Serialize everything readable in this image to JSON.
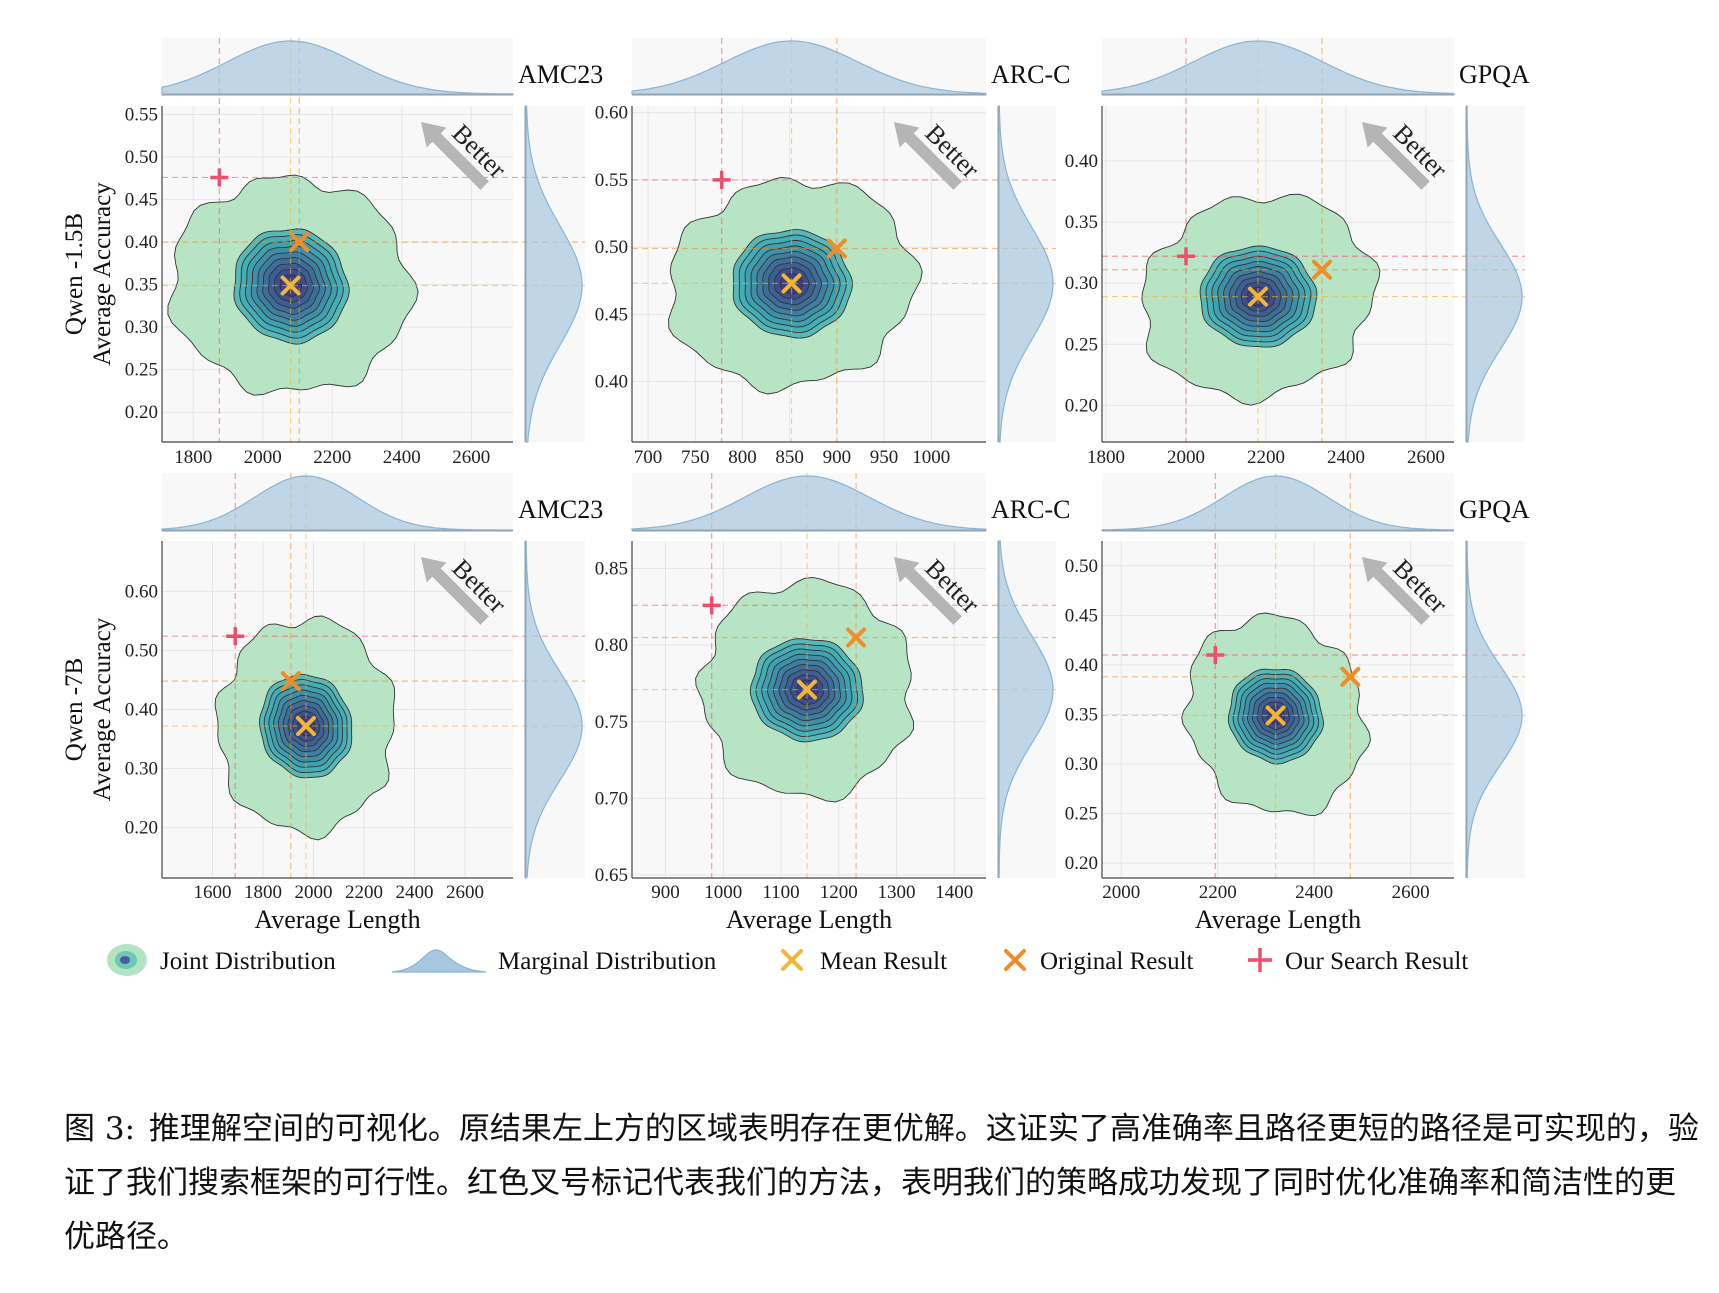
{
  "chart_data": [
    {
      "type": "contour-kde-joint",
      "row_label": "Qwen -1.5B",
      "dataset": "AMC23",
      "ylabel": "Average Accuracy",
      "xlabel": "",
      "xlim": [
        1710,
        2720
      ],
      "ylim": [
        0.165,
        0.56
      ],
      "xticks": [
        1800,
        2000,
        2200,
        2400,
        2600
      ],
      "yticks": [
        0.2,
        0.25,
        0.3,
        0.35,
        0.4,
        0.45,
        0.5,
        0.55
      ],
      "mean_result": [
        2080,
        0.349
      ],
      "original_result": [
        2105,
        0.4
      ],
      "our_search_result": [
        1875,
        0.476
      ],
      "x_spread": 135,
      "y_spread": 0.052,
      "annotation": "Better"
    },
    {
      "type": "contour-kde-joint",
      "row_label": "Qwen -1.5B",
      "dataset": "ARC-C",
      "ylabel": "",
      "xlabel": "",
      "xlim": [
        683,
        1058
      ],
      "ylim": [
        0.355,
        0.605
      ],
      "xticks": [
        700,
        750,
        800,
        850,
        900,
        950,
        1000
      ],
      "yticks": [
        0.4,
        0.45,
        0.5,
        0.55,
        0.6
      ],
      "mean_result": [
        852,
        0.473
      ],
      "original_result": [
        900,
        0.499
      ],
      "our_search_result": [
        778,
        0.55
      ],
      "x_spread": 52,
      "y_spread": 0.031,
      "annotation": "Better"
    },
    {
      "type": "contour-kde-joint",
      "row_label": "Qwen -1.5B",
      "dataset": "GPQA",
      "ylabel": "",
      "xlabel": "",
      "xlim": [
        1790,
        2670
      ],
      "ylim": [
        0.17,
        0.445
      ],
      "xticks": [
        1800,
        2000,
        2200,
        2400,
        2600
      ],
      "yticks": [
        0.2,
        0.25,
        0.3,
        0.35,
        0.4
      ],
      "mean_result": [
        2180,
        0.289
      ],
      "original_result": [
        2340,
        0.311
      ],
      "our_search_result": [
        2000,
        0.322
      ],
      "x_spread": 120,
      "y_spread": 0.032,
      "annotation": "Better"
    },
    {
      "type": "contour-kde-joint",
      "row_label": "Qwen -7B",
      "dataset": "AMC23",
      "ylabel": "Average Accuracy",
      "xlabel": "Average Length",
      "xlim": [
        1400,
        2790
      ],
      "ylim": [
        0.115,
        0.685
      ],
      "xticks": [
        1600,
        1800,
        2000,
        2200,
        2400,
        2600
      ],
      "yticks": [
        0.2,
        0.3,
        0.4,
        0.5,
        0.6
      ],
      "mean_result": [
        1970,
        0.372
      ],
      "original_result": [
        1910,
        0.448
      ],
      "our_search_result": [
        1690,
        0.524
      ],
      "x_spread": 150,
      "y_spread": 0.068,
      "annotation": "Better"
    },
    {
      "type": "contour-kde-joint",
      "row_label": "Qwen -7B",
      "dataset": "ARC-C",
      "ylabel": "",
      "xlabel": "Average Length",
      "xlim": [
        842,
        1455
      ],
      "ylim": [
        0.648,
        0.868
      ],
      "xticks": [
        900,
        1000,
        1100,
        1200,
        1300,
        1400
      ],
      "yticks": [
        0.65,
        0.7,
        0.75,
        0.8,
        0.85
      ],
      "mean_result": [
        1145,
        0.771
      ],
      "original_result": [
        1230,
        0.805
      ],
      "our_search_result": [
        980,
        0.826
      ],
      "x_spread": 80,
      "y_spread": 0.026,
      "annotation": "Better"
    },
    {
      "type": "contour-kde-joint",
      "row_label": "Qwen -7B",
      "dataset": "GPQA",
      "ylabel": "",
      "xlabel": "Average Length",
      "xlim": [
        1960,
        2690
      ],
      "ylim": [
        0.185,
        0.525
      ],
      "xticks": [
        2000,
        2200,
        2400,
        2600
      ],
      "yticks": [
        0.2,
        0.25,
        0.3,
        0.35,
        0.4,
        0.45,
        0.5
      ],
      "mean_result": [
        2320,
        0.349
      ],
      "original_result": [
        2475,
        0.388
      ],
      "our_search_result": [
        2195,
        0.41
      ],
      "x_spread": 80,
      "y_spread": 0.037,
      "annotation": "Better"
    }
  ],
  "legend": {
    "joint": "Joint Distribution",
    "marginal": "Marginal Distribution",
    "mean": "Mean Result",
    "original": "Original Result",
    "search": "Our Search Result"
  },
  "colors": {
    "fill_low": "#b2e3c2",
    "fill_high": "#3b2d7c",
    "contour_line": "#333333",
    "marginal": "#a8c8df",
    "mean_marker": "#f2b535",
    "original_marker": "#f28c28",
    "search_marker": "#ef4f68",
    "arrow": "#b5b5b5",
    "grid": "#e6e6e6",
    "panel_bg": "#f8f8f8"
  },
  "caption": {
    "label": "图 3:",
    "text": "推理解空间的可视化。原结果左上方的区域表明存在更优解。这证实了高准确率且路径更短的路径是可实现的，验证了我们搜索框架的可行性。红色叉号标记代表我们的方法，表明我们的策略成功发现了同时优化准确率和简洁性的更优路径。"
  }
}
